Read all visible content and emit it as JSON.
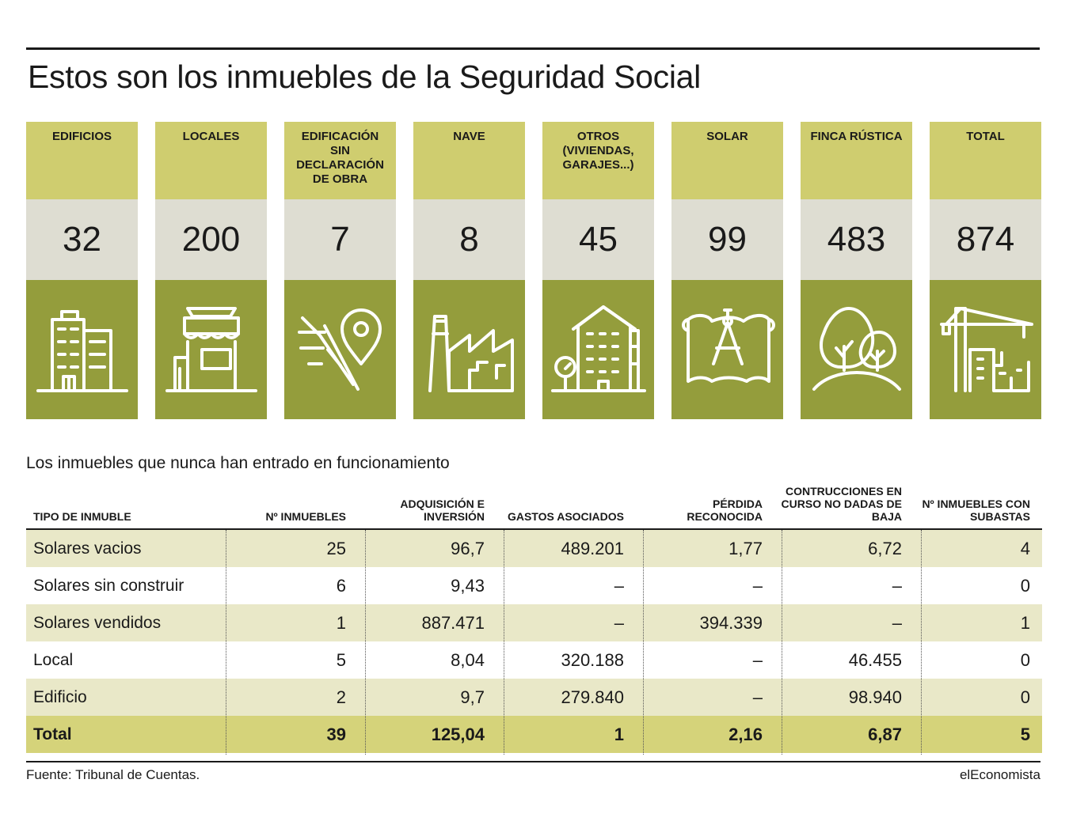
{
  "title": "Estos son los inmuebles de la Seguridad Social",
  "chart_data": [
    {
      "type": "table",
      "categories": [
        "EDIFICIOS",
        "LOCALES",
        "EDIFICACIÓN SIN DECLARACIÓN DE OBRA",
        "NAVE",
        "OTROS (VIVIENDAS, GARAJES...)",
        "SOLAR",
        "FINCA RÚSTICA",
        "TOTAL"
      ],
      "values": [
        32,
        200,
        7,
        8,
        45,
        99,
        483,
        874
      ],
      "cards": [
        {
          "label": "EDIFICIOS",
          "value": "32",
          "icon": "building-icon"
        },
        {
          "label": "LOCALES",
          "value": "200",
          "icon": "shop-icon"
        },
        {
          "label": "EDIFICACIÓN SIN DECLARACIÓN DE OBRA",
          "value": "7",
          "icon": "location-pin-icon"
        },
        {
          "label": "NAVE",
          "value": "8",
          "icon": "factory-icon"
        },
        {
          "label": "OTROS (VIVIENDAS, GARAJES...)",
          "value": "45",
          "icon": "apartment-icon"
        },
        {
          "label": "SOLAR",
          "value": "99",
          "icon": "blueprint-icon"
        },
        {
          "label": "FINCA RÚSTICA",
          "value": "483",
          "icon": "trees-icon"
        },
        {
          "label": "TOTAL",
          "value": "874",
          "icon": "crane-icon"
        }
      ],
      "colors": {
        "header": "#cfcd6f",
        "number": "#deddd2",
        "icon_bg": "#949d3c"
      }
    },
    {
      "type": "table",
      "title": "Los inmuebles que nunca han entrado en funcionamiento",
      "columns": [
        "TIPO DE INMUBLE",
        "Nº INMUEBLES",
        "ADQUISICIÓN E INVERSIÓN",
        "GASTOS ASOCIADOS",
        "PÉRDIDA RECONOCIDA",
        "CONTRUCCIONES EN CURSO NO DADAS DE BAJA",
        "Nº INMUEBLES CON SUBASTAS"
      ],
      "rows": [
        {
          "label": "Solares vacios",
          "values": [
            "25",
            "96,7",
            "489.201",
            "1,77",
            "6,72",
            "4"
          ]
        },
        {
          "label": "Solares sin construir",
          "values": [
            "6",
            "9,43",
            "–",
            "–",
            "–",
            "0"
          ]
        },
        {
          "label": "Solares vendidos",
          "values": [
            "1",
            "887.471",
            "–",
            "394.339",
            "–",
            "1"
          ]
        },
        {
          "label": "Local",
          "values": [
            "5",
            "8,04",
            "320.188",
            "–",
            "46.455",
            "0"
          ]
        },
        {
          "label": "Edificio",
          "values": [
            "2",
            "9,7",
            "279.840",
            "–",
            "98.940",
            "0"
          ]
        }
      ],
      "total": {
        "label": "Total",
        "values": [
          "39",
          "125,04",
          "1",
          "2,16",
          "6,87",
          "5"
        ]
      },
      "colors": {
        "shade": "#e9e8c8",
        "total": "#d5d37a"
      }
    }
  ],
  "footer": {
    "source": "Fuente: Tribunal de Cuentas.",
    "brand": "elEconomista"
  }
}
